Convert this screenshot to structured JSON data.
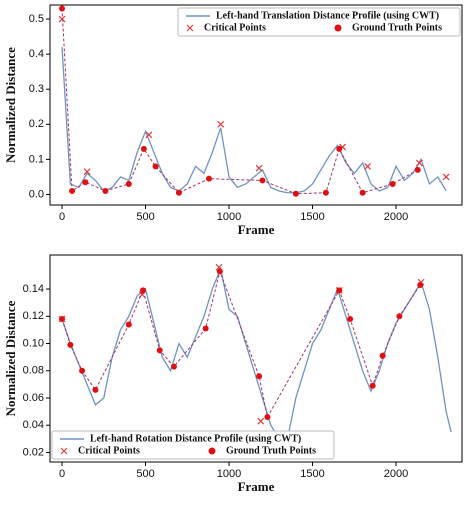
{
  "chart_data": [
    {
      "type": "line",
      "legend": "upper right",
      "xlabel": "Frame",
      "ylabel": "Normalized Distance",
      "xlim": [
        -72,
        2395
      ],
      "xticks": [
        0,
        500,
        1000,
        1500,
        2000
      ],
      "ylim": [
        -0.03,
        0.54
      ],
      "yticks": [
        {
          "value": 0,
          "label": "0.0"
        },
        0.1,
        0.2,
        0.3,
        0.4,
        0.5
      ],
      "series": [
        {
          "name": "Left-hand Translation Distance Profile (using CWT)",
          "color": "#6f93c4",
          "marker": "none",
          "x": [
            0,
            50,
            100,
            150,
            200,
            250,
            300,
            350,
            400,
            450,
            500,
            550,
            600,
            650,
            700,
            750,
            800,
            850,
            900,
            950,
            1000,
            1050,
            1100,
            1150,
            1200,
            1250,
            1300,
            1350,
            1400,
            1450,
            1500,
            1550,
            1600,
            1650,
            1700,
            1750,
            1800,
            1850,
            1900,
            1950,
            2000,
            2050,
            2100,
            2150,
            2200,
            2250,
            2300
          ],
          "values": [
            0.42,
            0.03,
            0.02,
            0.06,
            0.04,
            0.01,
            0.02,
            0.05,
            0.04,
            0.12,
            0.18,
            0.12,
            0.06,
            0.02,
            0.01,
            0.03,
            0.08,
            0.06,
            0.12,
            0.19,
            0.05,
            0.02,
            0.03,
            0.05,
            0.07,
            0.02,
            0.01,
            0.005,
            0.005,
            0.01,
            0.03,
            0.07,
            0.11,
            0.14,
            0.09,
            0.06,
            0.09,
            0.03,
            0.01,
            0.02,
            0.08,
            0.04,
            0.06,
            0.1,
            0.03,
            0.05,
            0.01
          ]
        },
        {
          "name": "Critical Points",
          "color": "#e23a3a",
          "marker": "x",
          "x": [
            0,
            150,
            520,
            950,
            1180,
            1680,
            1830,
            2140,
            2300
          ],
          "values": [
            0.5,
            0.065,
            0.17,
            0.2,
            0.075,
            0.135,
            0.08,
            0.09,
            0.05
          ]
        },
        {
          "name": "Ground Truth Points",
          "color": "#e01010",
          "marker": "o",
          "x": [
            0,
            60,
            140,
            260,
            400,
            490,
            560,
            700,
            880,
            1200,
            1400,
            1580,
            1660,
            1800,
            1980,
            2130
          ],
          "values": [
            0.53,
            0.01,
            0.035,
            0.01,
            0.03,
            0.13,
            0.08,
            0.005,
            0.045,
            0.04,
            0.002,
            0.005,
            0.13,
            0.005,
            0.03,
            0.07
          ]
        }
      ]
    },
    {
      "type": "line",
      "legend": "lower left",
      "xlabel": "Frame",
      "ylabel": "Normalized Distance",
      "xlim": [
        -72,
        2395
      ],
      "xticks": [
        0,
        500,
        1000,
        1500,
        2000
      ],
      "ylim": [
        0.013,
        0.165
      ],
      "yticks": [
        0.02,
        0.04,
        0.06,
        0.08,
        {
          "value": 0.1,
          "label": "0.10"
        },
        0.12,
        0.14
      ],
      "series": [
        {
          "name": "Left-hand Rotation Distance Profile (using CWT)",
          "color": "#6f93c4",
          "marker": "none",
          "x": [
            0,
            50,
            100,
            150,
            200,
            250,
            300,
            350,
            400,
            450,
            500,
            550,
            600,
            650,
            700,
            750,
            800,
            850,
            900,
            950,
            1000,
            1050,
            1100,
            1150,
            1200,
            1250,
            1300,
            1350,
            1400,
            1450,
            1500,
            1550,
            1600,
            1650,
            1700,
            1750,
            1800,
            1850,
            1900,
            1950,
            2000,
            2050,
            2100,
            2150,
            2200,
            2250,
            2300,
            2330
          ],
          "values": [
            0.118,
            0.1,
            0.085,
            0.07,
            0.055,
            0.06,
            0.09,
            0.11,
            0.12,
            0.135,
            0.14,
            0.115,
            0.09,
            0.08,
            0.1,
            0.09,
            0.105,
            0.12,
            0.14,
            0.155,
            0.125,
            0.12,
            0.1,
            0.08,
            0.06,
            0.04,
            0.03,
            0.03,
            0.06,
            0.08,
            0.1,
            0.11,
            0.125,
            0.14,
            0.12,
            0.1,
            0.08,
            0.065,
            0.08,
            0.1,
            0.115,
            0.125,
            0.135,
            0.145,
            0.125,
            0.09,
            0.05,
            0.035
          ]
        },
        {
          "name": "Critical Points",
          "color": "#e23a3a",
          "marker": "x",
          "x": [
            0,
            480,
            940,
            1190,
            1660,
            2150
          ],
          "values": [
            0.118,
            0.136,
            0.156,
            0.043,
            0.139,
            0.145
          ]
        },
        {
          "name": "Ground Truth Points",
          "color": "#e01010",
          "marker": "o",
          "x": [
            0,
            50,
            120,
            200,
            400,
            485,
            585,
            670,
            860,
            945,
            1180,
            1230,
            1660,
            1725,
            1860,
            1920,
            2020,
            2145
          ],
          "values": [
            0.118,
            0.099,
            0.08,
            0.066,
            0.114,
            0.139,
            0.095,
            0.083,
            0.111,
            0.153,
            0.076,
            0.046,
            0.139,
            0.118,
            0.069,
            0.091,
            0.12,
            0.143
          ]
        }
      ]
    }
  ]
}
